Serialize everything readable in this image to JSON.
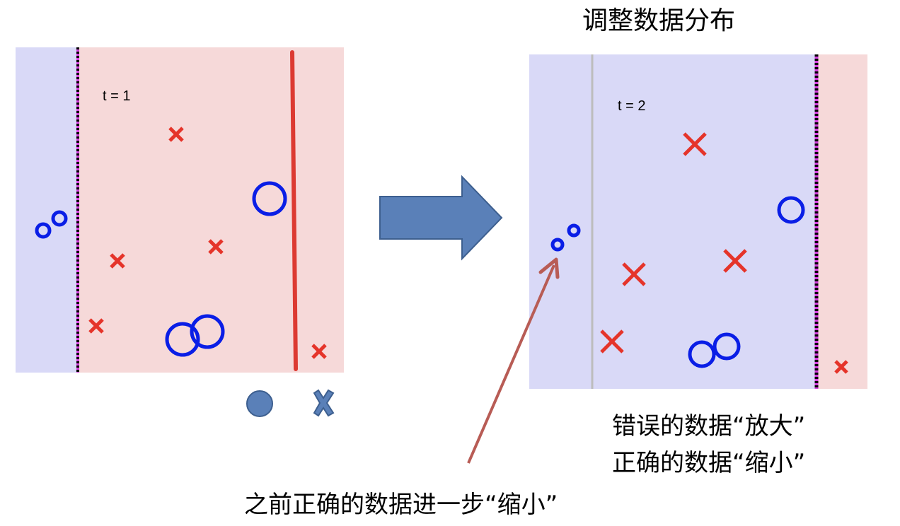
{
  "title": "调整数据分布",
  "left_panel": {
    "label": "t = 1"
  },
  "right_panel": {
    "label": "t = 2"
  },
  "annotations": {
    "wrong_enlarged": "错误的数据“放大”",
    "right_shrunk": "正确的数据“缩小”",
    "previous_right_shrunk": "之前正确的数据进一步“缩小”"
  },
  "legend": {
    "circle": "circle-class-icon",
    "cross": "cross-class-icon"
  },
  "colors": {
    "blue_region": "#d9d9f7",
    "pink_region": "#f6d9d9",
    "circle_marker": "#0a1ee6",
    "cross_marker": "#e5342a",
    "stump_line": "#dc3a32",
    "boundary_dashed": "#d640e0",
    "big_arrow": "#5a80b8",
    "pointer_arrow": "#b85c55",
    "legend_marker": "#5a80b8"
  }
}
